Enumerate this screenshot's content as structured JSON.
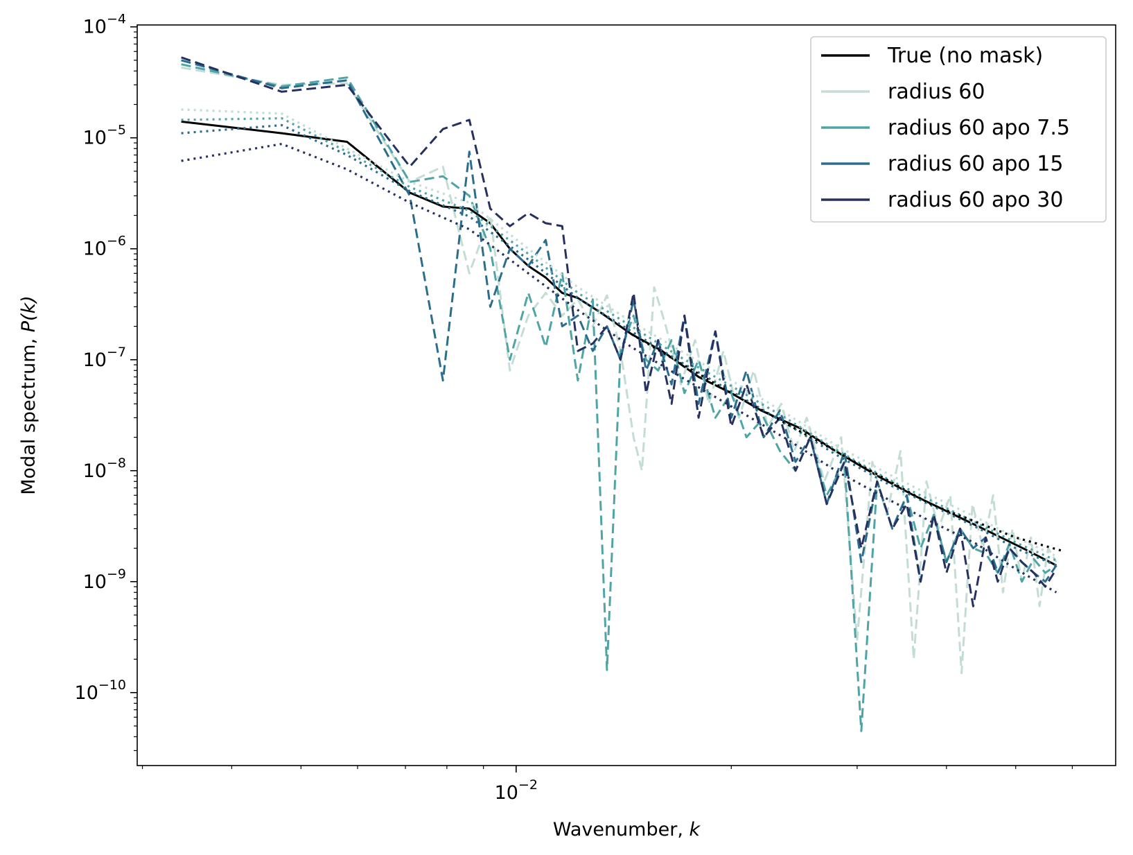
{
  "chart_data": {
    "type": "line",
    "title": "",
    "xlabel": "Wavenumber, ",
    "xlabel_var": "k",
    "ylabel": "Modal spectrum, ",
    "ylabel_var": "P(k)",
    "xscale": "log",
    "yscale": "log",
    "xlim": [
      0.00295,
      0.069
    ],
    "ylim": [
      2.2e-11,
      0.000104
    ],
    "grid": false,
    "legend_position": "top-right",
    "xticks": [
      {
        "base": "10",
        "exp": "−2",
        "value": 0.01
      }
    ],
    "yticks": [
      {
        "base": "10",
        "exp": "−4",
        "value": 0.0001
      },
      {
        "base": "10",
        "exp": "−5",
        "value": 1e-05
      },
      {
        "base": "10",
        "exp": "−6",
        "value": 1e-06
      },
      {
        "base": "10",
        "exp": "−7",
        "value": 1e-07
      },
      {
        "base": "10",
        "exp": "−8",
        "value": 1e-08
      },
      {
        "base": "10",
        "exp": "−9",
        "value": 1e-09
      },
      {
        "base": "10",
        "exp": "−10",
        "value": 1e-10
      }
    ],
    "legend": [
      {
        "label": "True (no mask)",
        "color": "#000000"
      },
      {
        "label": "radius 60",
        "color": "#c3ddd5"
      },
      {
        "label": "radius 60 apo 7.5",
        "color": "#4fa4a6"
      },
      {
        "label": "radius 60 apo 15",
        "color": "#2a6d8d"
      },
      {
        "label": "radius 60 apo 30",
        "color": "#27315f"
      }
    ],
    "series": [
      {
        "name": "True (no mask)",
        "color": "#000000",
        "style": "solid",
        "x": [
          0.0034,
          0.0047,
          0.0058,
          0.0071,
          0.0079,
          0.0086,
          0.0092,
          0.0098,
          0.0104,
          0.011,
          0.0116,
          0.0122,
          0.0132,
          0.0145,
          0.016,
          0.018,
          0.02,
          0.022,
          0.025,
          0.028,
          0.032,
          0.036,
          0.041,
          0.046,
          0.052,
          0.057
        ],
        "y": [
          1.4e-05,
          1.1e-05,
          9.2e-06,
          3.2e-06,
          2.4e-06,
          2.3e-06,
          1.7e-06,
          1e-06,
          7e-07,
          5.5e-07,
          4e-07,
          3.6e-07,
          2.6e-07,
          1.7e-07,
          1.2e-07,
          7e-08,
          5e-08,
          3.5e-08,
          2.4e-08,
          1.5e-08,
          9e-09,
          6e-09,
          4e-09,
          2.8e-09,
          1.9e-09,
          1.4e-09
        ]
      },
      {
        "name": "radius 60",
        "color": "#c3ddd5",
        "style": "dashed",
        "x": [
          0.0034,
          0.0047,
          0.0058,
          0.0071,
          0.0079,
          0.0086,
          0.0092,
          0.0098,
          0.0104,
          0.011,
          0.0116,
          0.0122,
          0.0128,
          0.0134,
          0.014,
          0.0146,
          0.015,
          0.0156,
          0.0162,
          0.017,
          0.0178,
          0.0186,
          0.0195,
          0.0205,
          0.0215,
          0.0225,
          0.0235,
          0.0245,
          0.0255,
          0.027,
          0.0285,
          0.03,
          0.0315,
          0.033,
          0.0345,
          0.036,
          0.0375,
          0.039,
          0.0405,
          0.042,
          0.0435,
          0.045,
          0.0465,
          0.048,
          0.0495,
          0.051,
          0.0525,
          0.054,
          0.0555,
          0.057
        ],
        "y": [
          4.3e-05,
          3e-05,
          3.1e-05,
          4e-06,
          5.5e-06,
          6e-07,
          2e-06,
          8e-08,
          2.5e-07,
          4e-07,
          2.5e-07,
          3.5e-07,
          2e-07,
          3.8e-07,
          1.2e-07,
          2e-08,
          1e-08,
          4.5e-07,
          2e-07,
          6e-08,
          1.5e-07,
          4e-08,
          1.2e-07,
          3e-08,
          8e-08,
          2.5e-08,
          4e-08,
          1.5e-08,
          3e-08,
          8e-09,
          2e-08,
          3e-10,
          1.2e-08,
          4e-09,
          1.5e-08,
          2e-10,
          8e-09,
          3e-09,
          6e-09,
          1.5e-10,
          5e-09,
          2e-09,
          6e-09,
          8e-10,
          3e-09,
          1e-09,
          2.5e-09,
          6e-10,
          2e-09,
          1.5e-09
        ]
      },
      {
        "name": "radius 60 apo 7.5",
        "color": "#4fa4a6",
        "style": "dashed",
        "x": [
          0.0034,
          0.0047,
          0.0058,
          0.0071,
          0.0079,
          0.0086,
          0.0092,
          0.0098,
          0.0104,
          0.011,
          0.0116,
          0.0122,
          0.0128,
          0.0134,
          0.014,
          0.0146,
          0.0152,
          0.0158,
          0.0165,
          0.0172,
          0.018,
          0.019,
          0.02,
          0.021,
          0.0222,
          0.0234,
          0.0246,
          0.0258,
          0.0272,
          0.0288,
          0.0304,
          0.032,
          0.0336,
          0.0352,
          0.0368,
          0.0384,
          0.04,
          0.0418,
          0.0436,
          0.0454,
          0.0472,
          0.049,
          0.051,
          0.053,
          0.055,
          0.057
        ],
        "y": [
          4.6e-05,
          2.9e-05,
          3.5e-05,
          4e-06,
          4.5e-06,
          3e-06,
          1e-06,
          1e-07,
          4e-07,
          1.3e-07,
          6e-07,
          6.5e-08,
          3.5e-07,
          1.6e-10,
          1.2e-07,
          2.5e-07,
          1e-07,
          8e-08,
          1.5e-07,
          5e-08,
          1e-07,
          3e-08,
          5e-08,
          2e-08,
          3e-08,
          1.5e-08,
          1e-08,
          2e-08,
          6e-09,
          1.2e-08,
          4.5e-11,
          8e-09,
          3e-09,
          6e-09,
          2e-09,
          4e-09,
          1.5e-09,
          3e-09,
          2e-09,
          1.8e-09,
          1.2e-09,
          2.2e-09,
          1e-09,
          1.6e-09,
          1.2e-09,
          1.4e-09
        ]
      },
      {
        "name": "radius 60 apo 15",
        "color": "#2a6d8d",
        "style": "dashed",
        "x": [
          0.0034,
          0.0047,
          0.0058,
          0.0071,
          0.0079,
          0.0086,
          0.0092,
          0.0098,
          0.0104,
          0.011,
          0.0116,
          0.0122,
          0.0128,
          0.0134,
          0.014,
          0.0146,
          0.0152,
          0.0158,
          0.0165,
          0.0172,
          0.018,
          0.019,
          0.02,
          0.021,
          0.0222,
          0.0234,
          0.0246,
          0.0258,
          0.0272,
          0.0288,
          0.0304,
          0.032,
          0.0336,
          0.0352,
          0.0368,
          0.0384,
          0.04,
          0.0418,
          0.0436,
          0.0454,
          0.0472,
          0.049,
          0.051,
          0.053,
          0.055,
          0.057
        ],
        "y": [
          5e-05,
          2.8e-05,
          3.3e-05,
          3e-06,
          6.5e-08,
          7.5e-06,
          3e-07,
          1e-06,
          7e-07,
          1.2e-06,
          2e-07,
          2.5e-07,
          1.2e-07,
          2e-07,
          1e-07,
          3.5e-07,
          8e-08,
          1.5e-07,
          6e-08,
          2.5e-07,
          4e-08,
          1.8e-07,
          3e-08,
          8e-08,
          2e-08,
          3.5e-08,
          1.2e-08,
          2e-08,
          5e-09,
          1.5e-08,
          1.5e-09,
          8e-09,
          3e-09,
          6e-09,
          1e-09,
          4e-09,
          1.5e-09,
          3e-09,
          2e-09,
          2.5e-09,
          1.2e-09,
          2e-09,
          1.5e-09,
          1.2e-09,
          1e-09,
          1.4e-09
        ]
      },
      {
        "name": "radius 60 apo 30",
        "color": "#27315f",
        "style": "dashed",
        "x": [
          0.0034,
          0.0047,
          0.0058,
          0.0071,
          0.0079,
          0.0086,
          0.0092,
          0.0098,
          0.0104,
          0.011,
          0.0116,
          0.0122,
          0.0128,
          0.0134,
          0.014,
          0.0146,
          0.0152,
          0.0158,
          0.0165,
          0.0172,
          0.018,
          0.019,
          0.02,
          0.021,
          0.0222,
          0.0234,
          0.0246,
          0.0258,
          0.0272,
          0.0288,
          0.0304,
          0.032,
          0.0336,
          0.0352,
          0.0368,
          0.0384,
          0.04,
          0.0418,
          0.0436,
          0.0454,
          0.0472,
          0.049,
          0.051,
          0.053,
          0.055,
          0.057
        ],
        "y": [
          5.3e-05,
          2.6e-05,
          3e-05,
          5.5e-06,
          1.2e-05,
          1.45e-05,
          2.3e-06,
          1.6e-06,
          2.1e-06,
          1.7e-06,
          1.6e-06,
          1.2e-07,
          1.4e-07,
          2e-07,
          1e-07,
          4e-07,
          5e-08,
          1.5e-07,
          4e-08,
          2.5e-07,
          3e-08,
          1.8e-07,
          2.5e-08,
          6e-08,
          2e-08,
          3e-08,
          1e-08,
          2e-08,
          5e-09,
          1.2e-08,
          2e-09,
          8e-09,
          3e-09,
          5e-09,
          1e-09,
          4e-09,
          1.2e-09,
          3e-09,
          6e-10,
          2.5e-09,
          1e-09,
          2e-09,
          1.5e-09,
          1.2e-09,
          9e-10,
          1.3e-09
        ]
      },
      {
        "name": "",
        "color": "#c3ddd5",
        "style": "dotted",
        "x": [
          0.0034,
          0.0047,
          0.0058,
          0.0071,
          0.0086,
          0.0104,
          0.0122,
          0.0145,
          0.017,
          0.02,
          0.024,
          0.028,
          0.033,
          0.038,
          0.044,
          0.05,
          0.057
        ],
        "y": [
          1.8e-05,
          1.65e-05,
          8e-06,
          4e-06,
          2.6e-06,
          1e-06,
          4.5e-07,
          2.2e-07,
          1.2e-07,
          6.5e-08,
          3.2e-08,
          1.7e-08,
          9.5e-09,
          6e-09,
          3.8e-09,
          2.5e-09,
          1.7e-09
        ]
      },
      {
        "name": "",
        "color": "#4fa4a6",
        "style": "dotted",
        "x": [
          0.0034,
          0.0047,
          0.0058,
          0.0071,
          0.0086,
          0.0104,
          0.0122,
          0.0145,
          0.017,
          0.02,
          0.024,
          0.028,
          0.033,
          0.038,
          0.044,
          0.05,
          0.057
        ],
        "y": [
          1.45e-05,
          1.5e-05,
          7.5e-06,
          3.6e-06,
          2.2e-06,
          9e-07,
          4e-07,
          2e-07,
          1.05e-07,
          5.8e-08,
          2.9e-08,
          1.55e-08,
          8.5e-09,
          5.4e-09,
          3.4e-09,
          2.25e-09,
          1.55e-09
        ]
      },
      {
        "name": "",
        "color": "#2a6d8d",
        "style": "dotted",
        "x": [
          0.0034,
          0.0047,
          0.0058,
          0.0071,
          0.0086,
          0.0104,
          0.0122,
          0.0145,
          0.017,
          0.02,
          0.024,
          0.028,
          0.033,
          0.038,
          0.044,
          0.05,
          0.057
        ],
        "y": [
          1.1e-05,
          1.3e-05,
          7e-06,
          3.3e-06,
          1.95e-06,
          8e-07,
          3.6e-07,
          1.8e-07,
          9.5e-08,
          5.2e-08,
          2.6e-08,
          1.4e-08,
          7.7e-09,
          4.9e-09,
          3.1e-09,
          2e-09,
          1.4e-09
        ]
      },
      {
        "name": "",
        "color": "#27315f",
        "style": "dotted",
        "x": [
          0.0034,
          0.0047,
          0.0058,
          0.0071,
          0.0086,
          0.0104,
          0.0122,
          0.0145,
          0.017,
          0.02,
          0.024,
          0.028,
          0.033,
          0.038,
          0.044,
          0.05,
          0.057
        ],
        "y": [
          6.2e-06,
          8.8e-06,
          5.2e-06,
          2.6e-06,
          1.5e-06,
          6e-07,
          2.8e-07,
          1.3e-07,
          7e-08,
          3.8e-08,
          1.9e-08,
          1e-08,
          5.6e-09,
          3.5e-09,
          2.2e-09,
          1.3e-09,
          8e-10
        ]
      },
      {
        "name": "",
        "color": "#000000",
        "style": "dotted",
        "x": [
          0.0145,
          0.02,
          0.028,
          0.038,
          0.05,
          0.058
        ],
        "y": [
          1.7e-07,
          5e-08,
          1.5e-08,
          5e-09,
          2.5e-09,
          1.9e-09
        ]
      }
    ]
  }
}
